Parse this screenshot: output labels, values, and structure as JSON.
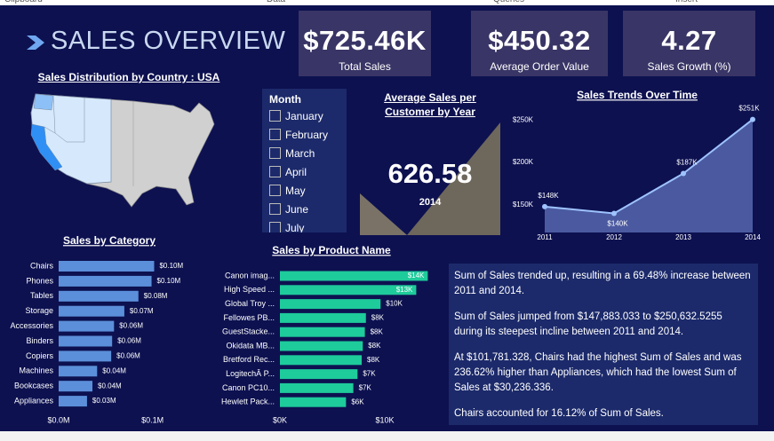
{
  "ribbon": [
    "Clipboard",
    "Data",
    "Queries",
    "Insert"
  ],
  "header": {
    "title": "SALES OVERVIEW"
  },
  "kpis": [
    {
      "value": "$725.46K",
      "label": "Total Sales"
    },
    {
      "value": "$450.32",
      "label": "Average Order Value"
    },
    {
      "value": "4.27",
      "label": "Sales Growth (%)"
    }
  ],
  "map": {
    "title": "Sales Distribution by Country : USA"
  },
  "slicer": {
    "title": "Month",
    "items": [
      "January",
      "February",
      "March",
      "April",
      "May",
      "June",
      "July"
    ]
  },
  "card": {
    "title": "Average Sales per Customer by Year",
    "value": "626.58",
    "year": "2014"
  },
  "chart_data": [
    {
      "type": "bar",
      "orientation": "horizontal",
      "title": "Sales by Category",
      "categories": [
        "Chairs",
        "Phones",
        "Tables",
        "Storage",
        "Accessories",
        "Binders",
        "Copiers",
        "Machines",
        "Bookcases",
        "Appliances"
      ],
      "values": [
        101781.328,
        99000,
        85000,
        70000,
        59000,
        57000,
        56000,
        41000,
        36000,
        30236.336
      ],
      "value_labels": [
        "$0.10M",
        "$0.10M",
        "$0.08M",
        "$0.07M",
        "$0.06M",
        "$0.06M",
        "$0.06M",
        "$0.04M",
        "$0.04M",
        "$0.03M"
      ],
      "color": "#5b8fd9",
      "xlim": [
        0,
        125000
      ],
      "xticks": [
        {
          "value": 0,
          "label": "$0.0M"
        },
        {
          "value": 100000,
          "label": "$0.1M"
        }
      ]
    },
    {
      "type": "bar",
      "orientation": "horizontal",
      "title": "Sales by Product Name",
      "categories": [
        "Canon imag...",
        "High Speed ...",
        "Global Troy ...",
        "Fellowes PB...",
        "GuestStacke...",
        "Okidata MB...",
        "Bretford Rec...",
        "LogitechÂ P...",
        "Canon PC10...",
        "Hewlett Pack..."
      ],
      "values": [
        14100,
        13000,
        9600,
        8200,
        8100,
        7900,
        7800,
        7400,
        7000,
        6300
      ],
      "value_labels": [
        "$14K",
        "$13K",
        "$10K",
        "$8K",
        "$8K",
        "$8K",
        "$8K",
        "$7K",
        "$7K",
        "$6K"
      ],
      "color": "#1ecb9b",
      "xlim": [
        0,
        15000
      ],
      "xticks": [
        {
          "value": 0,
          "label": "$0K"
        },
        {
          "value": 10000,
          "label": "$10K"
        }
      ]
    },
    {
      "type": "area",
      "title": "Sales Trends Over Time",
      "categories": [
        "2011",
        "2012",
        "2013",
        "2014"
      ],
      "values": [
        147883.033,
        140000,
        187000,
        250632.5255
      ],
      "value_labels": [
        "$148K",
        "$140K",
        "$187K",
        "$251K"
      ],
      "color": "#9ec3ff",
      "fill": "#4b5aa0",
      "ylim": [
        117500,
        257500
      ],
      "yticks": [
        {
          "value": 150000,
          "label": "$150K"
        },
        {
          "value": 200000,
          "label": "$200K"
        },
        {
          "value": 250000,
          "label": "$250K"
        }
      ]
    }
  ],
  "narrative": [
    "Sum of Sales trended up, resulting in a 69.48% increase between 2011 and 2014.",
    "Sum of Sales jumped from $147,883.033 to $250,632.5255 during its steepest incline between 2011 and 2014.",
    "At $101,781.328, Chairs had the highest Sum of Sales and was 236.62% higher than Appliances, which had the lowest Sum of Sales at $30,236.336.",
    "Chairs accounted for 16.12% of Sum of Sales."
  ]
}
